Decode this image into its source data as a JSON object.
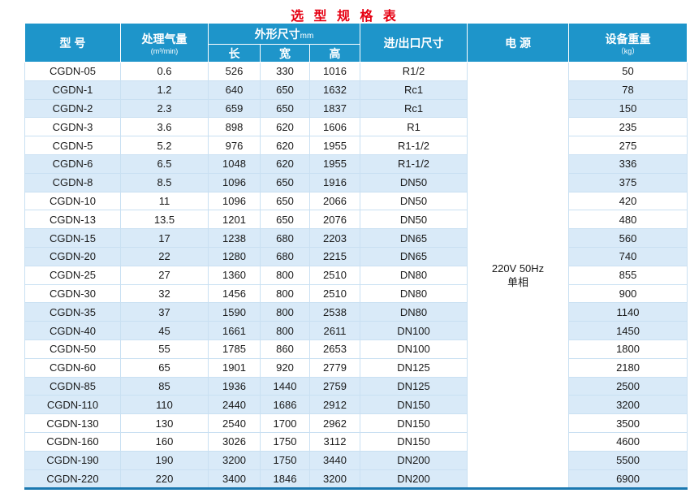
{
  "title": "选 型 规 格 表",
  "colors": {
    "header_bg": "#1e95ca",
    "row_alt_bg": "#d9eaf8",
    "title_red": "#e60012",
    "bottom_border": "#1b78b0"
  },
  "table": {
    "headers": {
      "model": "型  号",
      "capacity": "处理气量",
      "capacity_unit": "(m³/min)",
      "dimensions": "外形尺寸",
      "dimensions_unit": "mm",
      "length": "长",
      "width": "宽",
      "height": "高",
      "port": "进/出口尺寸",
      "power": "电  源",
      "weight": "设备重量",
      "weight_unit": "（kg）"
    },
    "power_value_line1": "220V 50Hz",
    "power_value_line2": "单相",
    "column_keys": [
      "model",
      "capacity",
      "length",
      "width",
      "height",
      "port",
      "weight"
    ],
    "rows": [
      [
        "CGDN-05",
        "0.6",
        "526",
        "330",
        "1016",
        "R1/2",
        "50"
      ],
      [
        "CGDN-1",
        "1.2",
        "640",
        "650",
        "1632",
        "Rc1",
        "78"
      ],
      [
        "CGDN-2",
        "2.3",
        "659",
        "650",
        "1837",
        "Rc1",
        "150"
      ],
      [
        "CGDN-3",
        "3.6",
        "898",
        "620",
        "1606",
        "R1",
        "235"
      ],
      [
        "CGDN-5",
        "5.2",
        "976",
        "620",
        "1955",
        "R1-1/2",
        "275"
      ],
      [
        "CGDN-6",
        "6.5",
        "1048",
        "620",
        "1955",
        "R1-1/2",
        "336"
      ],
      [
        "CGDN-8",
        "8.5",
        "1096",
        "650",
        "1916",
        "DN50",
        "375"
      ],
      [
        "CGDN-10",
        "11",
        "1096",
        "650",
        "2066",
        "DN50",
        "420"
      ],
      [
        "CGDN-13",
        "13.5",
        "1201",
        "650",
        "2076",
        "DN50",
        "480"
      ],
      [
        "CGDN-15",
        "17",
        "1238",
        "680",
        "2203",
        "DN65",
        "560"
      ],
      [
        "CGDN-20",
        "22",
        "1280",
        "680",
        "2215",
        "DN65",
        "740"
      ],
      [
        "CGDN-25",
        "27",
        "1360",
        "800",
        "2510",
        "DN80",
        "855"
      ],
      [
        "CGDN-30",
        "32",
        "1456",
        "800",
        "2510",
        "DN80",
        "900"
      ],
      [
        "CGDN-35",
        "37",
        "1590",
        "800",
        "2538",
        "DN80",
        "1140"
      ],
      [
        "CGDN-40",
        "45",
        "1661",
        "800",
        "2611",
        "DN100",
        "1450"
      ],
      [
        "CGDN-50",
        "55",
        "1785",
        "860",
        "2653",
        "DN100",
        "1800"
      ],
      [
        "CGDN-60",
        "65",
        "1901",
        "920",
        "2779",
        "DN125",
        "2180"
      ],
      [
        "CGDN-85",
        "85",
        "1936",
        "1440",
        "2759",
        "DN125",
        "2500"
      ],
      [
        "CGDN-110",
        "110",
        "2440",
        "1686",
        "2912",
        "DN150",
        "3200"
      ],
      [
        "CGDN-130",
        "130",
        "2540",
        "1700",
        "2962",
        "DN150",
        "3500"
      ],
      [
        "CGDN-160",
        "160",
        "3026",
        "1750",
        "3112",
        "DN150",
        "4600"
      ],
      [
        "CGDN-190",
        "190",
        "3200",
        "1750",
        "3440",
        "DN200",
        "5500"
      ],
      [
        "CGDN-220",
        "220",
        "3400",
        "1846",
        "3200",
        "DN200",
        "6900"
      ]
    ]
  }
}
